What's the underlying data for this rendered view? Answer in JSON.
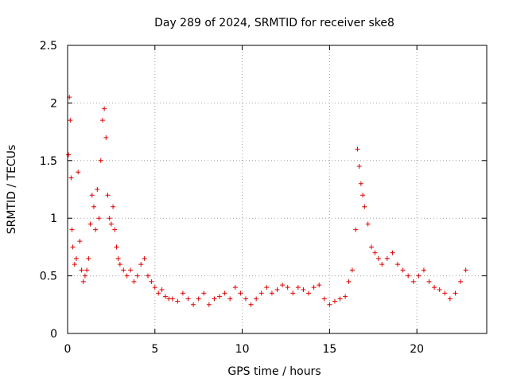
{
  "chart_data": {
    "type": "scatter",
    "title": "Day 289 of 2024, SRMTID for receiver ske8",
    "xlabel": "GPS time / hours",
    "ylabel": "SRMTID / TECUs",
    "xlim": [
      0,
      24
    ],
    "ylim": [
      0,
      2.5
    ],
    "xticks": [
      0,
      5,
      10,
      15,
      20
    ],
    "xtick_labels": [
      "0",
      "5",
      "10",
      "15",
      "20"
    ],
    "yticks": [
      0,
      0.5,
      1,
      1.5,
      2,
      2.5
    ],
    "ytick_labels": [
      "0",
      "0.5",
      "1",
      "1.5",
      "2",
      "2.5"
    ],
    "grid": true,
    "marker": "plus",
    "color": "#e00000",
    "series": [
      {
        "name": "SRMTID",
        "x": [
          0.05,
          0.1,
          0.15,
          0.2,
          0.25,
          0.3,
          0.4,
          0.5,
          0.6,
          0.7,
          0.8,
          0.9,
          1.0,
          1.1,
          1.2,
          1.3,
          1.4,
          1.5,
          1.6,
          1.7,
          1.8,
          1.9,
          2.0,
          2.1,
          2.2,
          2.3,
          2.4,
          2.5,
          2.6,
          2.7,
          2.8,
          2.9,
          3.0,
          3.2,
          3.4,
          3.6,
          3.8,
          4.0,
          4.2,
          4.4,
          4.6,
          4.8,
          5.0,
          5.2,
          5.4,
          5.6,
          5.8,
          6.0,
          6.3,
          6.6,
          6.9,
          7.2,
          7.5,
          7.8,
          8.1,
          8.4,
          8.7,
          9.0,
          9.3,
          9.6,
          9.9,
          10.2,
          10.5,
          10.8,
          11.1,
          11.4,
          11.7,
          12.0,
          12.3,
          12.6,
          12.9,
          13.2,
          13.5,
          13.8,
          14.1,
          14.4,
          14.7,
          15.0,
          15.3,
          15.6,
          15.9,
          16.1,
          16.3,
          16.5,
          16.6,
          16.7,
          16.8,
          16.9,
          17.0,
          17.2,
          17.4,
          17.6,
          17.8,
          18.0,
          18.3,
          18.6,
          18.9,
          19.2,
          19.5,
          19.8,
          20.1,
          20.4,
          20.7,
          21.0,
          21.3,
          21.6,
          21.9,
          22.2,
          22.5,
          22.8
        ],
        "y": [
          1.55,
          2.05,
          1.85,
          1.35,
          0.9,
          0.75,
          0.6,
          0.65,
          1.4,
          0.8,
          0.55,
          0.45,
          0.5,
          0.55,
          0.65,
          0.95,
          1.2,
          1.1,
          0.9,
          1.25,
          1.0,
          1.5,
          1.85,
          1.95,
          1.7,
          1.2,
          1.0,
          0.95,
          1.1,
          0.9,
          0.75,
          0.65,
          0.6,
          0.55,
          0.5,
          0.55,
          0.45,
          0.5,
          0.6,
          0.65,
          0.5,
          0.45,
          0.4,
          0.35,
          0.38,
          0.32,
          0.3,
          0.3,
          0.28,
          0.35,
          0.3,
          0.25,
          0.3,
          0.35,
          0.25,
          0.3,
          0.32,
          0.35,
          0.3,
          0.4,
          0.35,
          0.3,
          0.25,
          0.3,
          0.35,
          0.4,
          0.35,
          0.38,
          0.42,
          0.4,
          0.35,
          0.4,
          0.38,
          0.35,
          0.4,
          0.42,
          0.3,
          0.25,
          0.28,
          0.3,
          0.32,
          0.45,
          0.55,
          0.9,
          1.6,
          1.45,
          1.3,
          1.2,
          1.1,
          0.95,
          0.75,
          0.7,
          0.65,
          0.6,
          0.65,
          0.7,
          0.6,
          0.55,
          0.5,
          0.45,
          0.5,
          0.55,
          0.45,
          0.4,
          0.38,
          0.35,
          0.3,
          0.35,
          0.45,
          0.55
        ]
      }
    ]
  }
}
